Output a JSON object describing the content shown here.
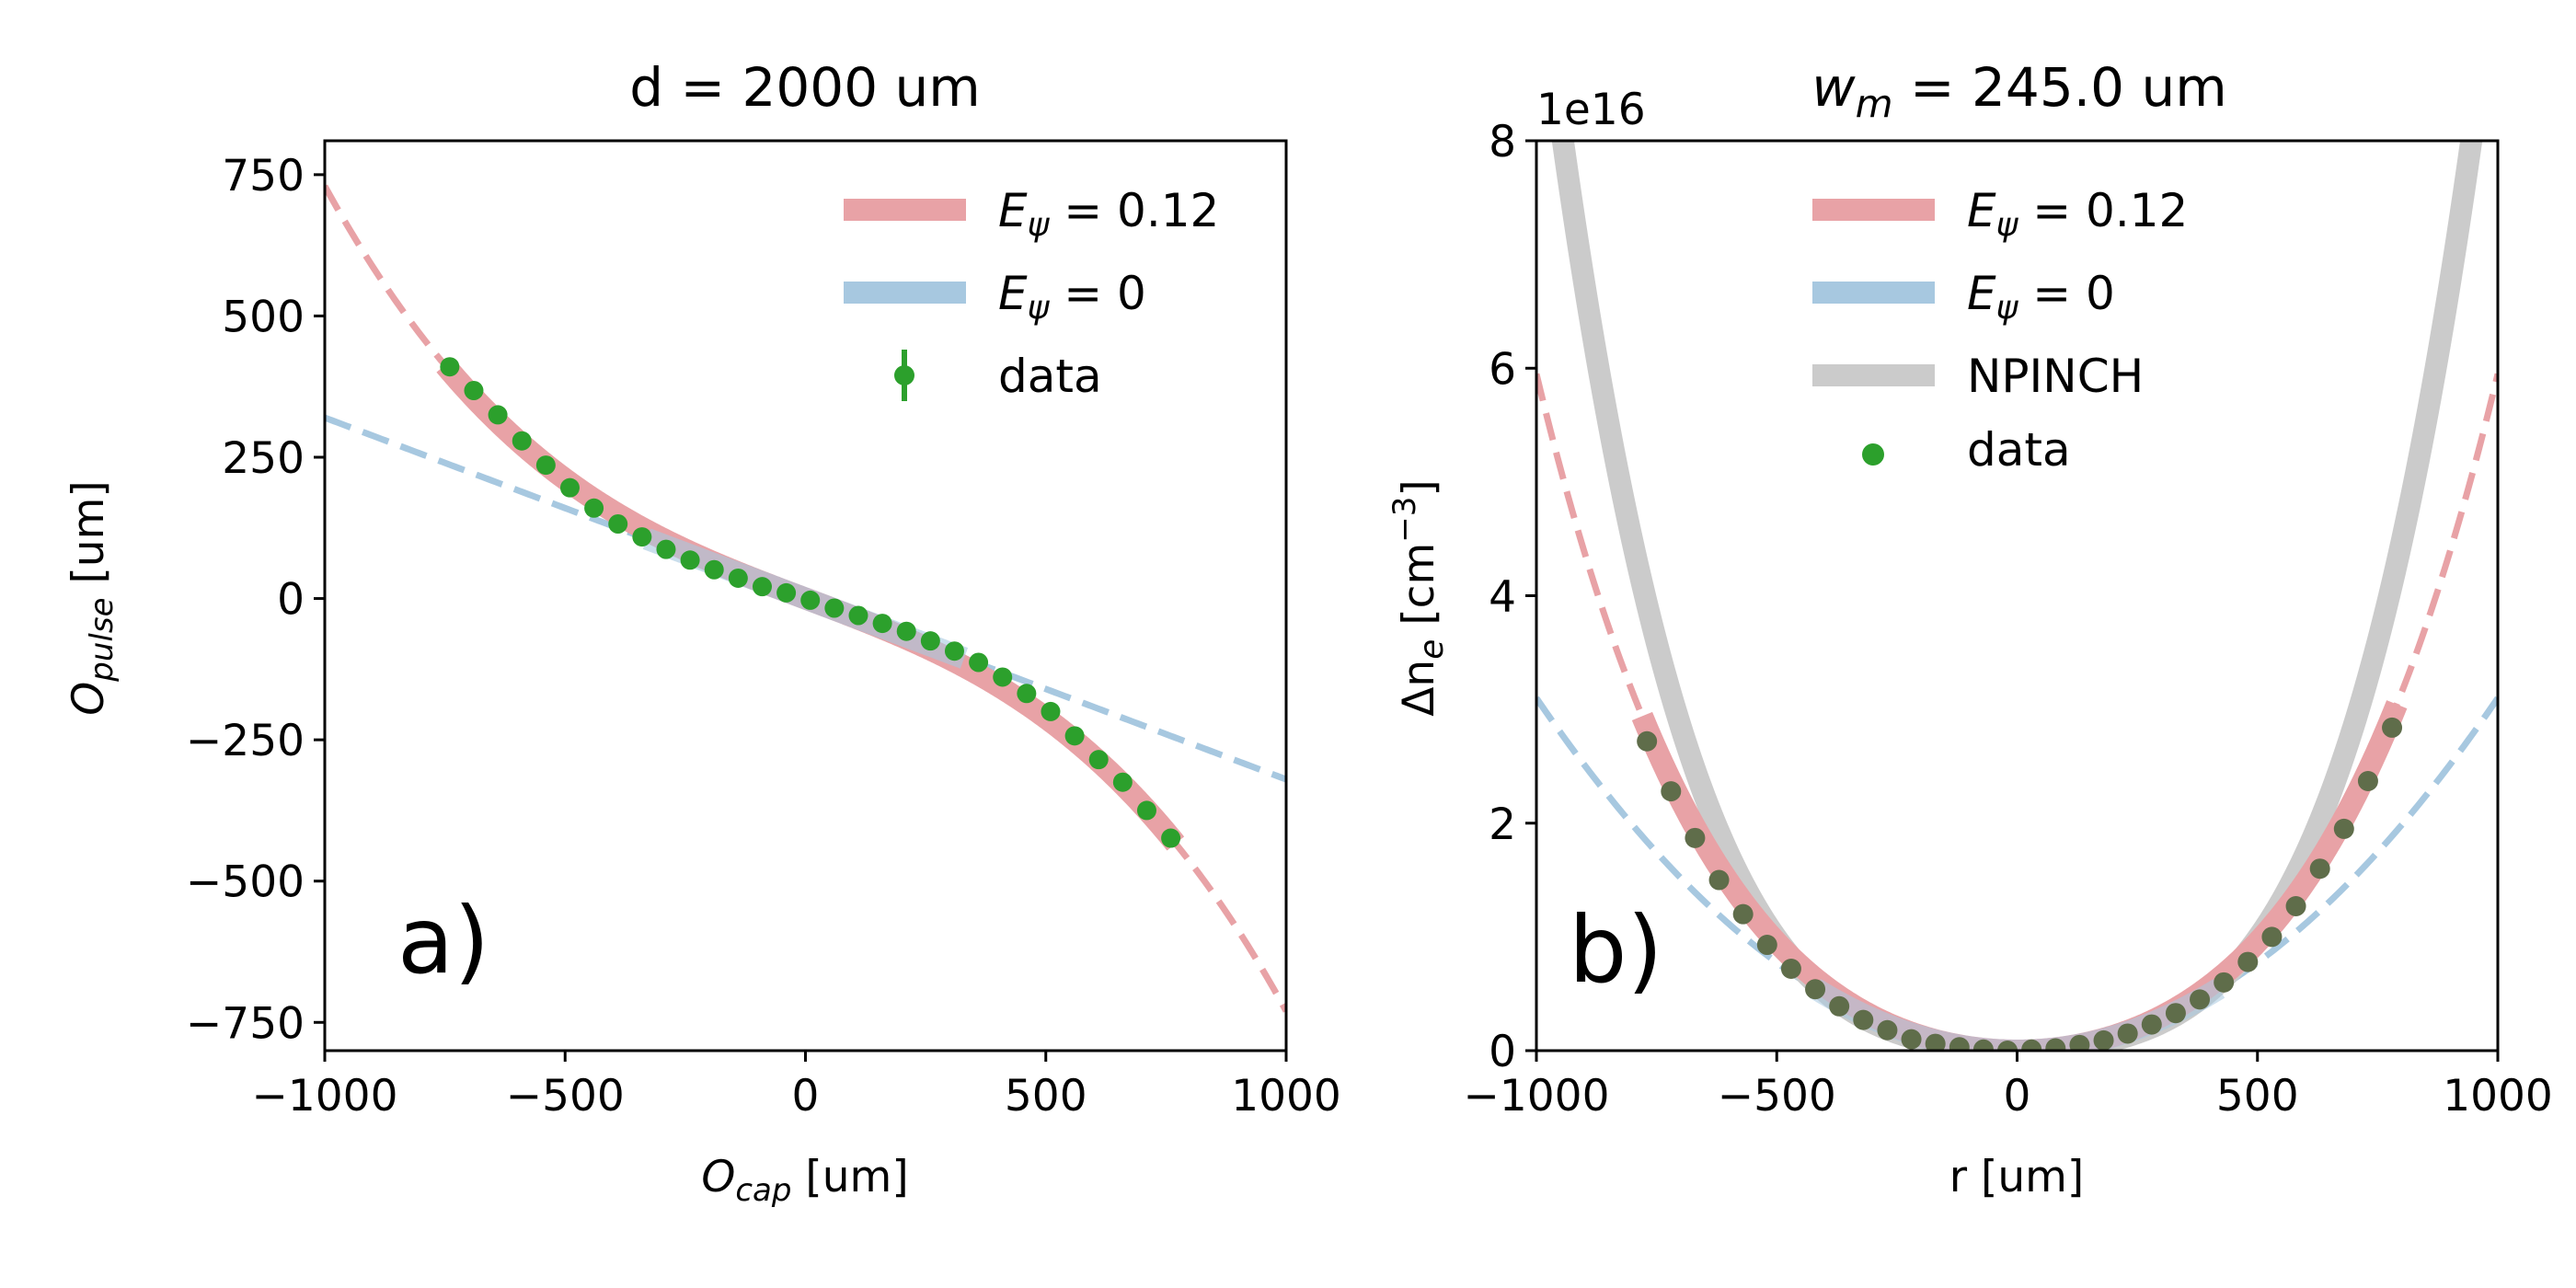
{
  "colors": {
    "red": "#e8a2a6",
    "blue": "#a7c8e0",
    "gray": "#cbcbcb",
    "green": "#2ca02c",
    "data_overlap": "#5f6d4a"
  },
  "chart_data": [
    {
      "type": "line",
      "title": "d = 2000 um",
      "xlabel_main": "O",
      "xlabel_sub": "cap",
      "xlabel_unit": " [um]",
      "ylabel_main": "O",
      "ylabel_sub": "pulse",
      "ylabel_unit": " [um]",
      "xlim": [
        -1000,
        1000
      ],
      "ylim": [
        -800,
        810
      ],
      "xticks": [
        -1000,
        -500,
        0,
        500,
        1000
      ],
      "xtick_labels": [
        "−1000",
        "−500",
        "0",
        "500",
        "1000"
      ],
      "yticks": [
        -750,
        -500,
        -250,
        0,
        250,
        500,
        750
      ],
      "ytick_labels": [
        "−750",
        "−500",
        "−250",
        "0",
        "250",
        "500",
        "750"
      ],
      "panel_label": "a)",
      "model": {
        "linear": -0.32,
        "cubic": -4.1e-07
      },
      "series": [
        {
          "name": "E_ψ = 0.12",
          "legend_sub": "ψ",
          "legend_value": " = 0.12",
          "style": "band+dash",
          "color_key": "red"
        },
        {
          "name": "E_ψ = 0",
          "legend_sub": "ψ",
          "legend_value": " = 0",
          "style": "band+dash",
          "color_key": "blue"
        },
        {
          "name": "data",
          "legend_label": "data",
          "style": "errorbar",
          "color_key": "green",
          "x": [
            -740,
            -690,
            -640,
            -590,
            -540,
            -490,
            -440,
            -390,
            -340,
            -290,
            -240,
            -190,
            -140,
            -90,
            -40,
            10,
            60,
            110,
            160,
            210,
            260,
            310,
            360,
            410,
            460,
            510,
            560,
            610,
            660,
            710,
            760
          ],
          "y": [
            410,
            368,
            325,
            279,
            236,
            196,
            160,
            132,
            109,
            87,
            68,
            51,
            36,
            21,
            10,
            -3,
            -17,
            -30,
            -44,
            -58,
            -75,
            -93,
            -113,
            -139,
            -168,
            -200,
            -243,
            -285,
            -325,
            -375,
            -424
          ]
        }
      ]
    },
    {
      "type": "line",
      "title_main": "w",
      "title_sub": "m",
      "title_rest": " = 245.0 um",
      "xlabel": "r [um]",
      "ylabel_main": "Δn",
      "ylabel_sub": "e",
      "ylabel_unit": " [cm",
      "ylabel_sup": "−3",
      "ylabel_close": "]",
      "offset_text": "1e16",
      "xlim": [
        -1000,
        1000
      ],
      "ylim": [
        0,
        8
      ],
      "xticks": [
        -1000,
        -500,
        0,
        500,
        1000
      ],
      "xtick_labels": [
        "−1000",
        "−500",
        "0",
        "500",
        "1000"
      ],
      "yticks": [
        0,
        2,
        4,
        6,
        8
      ],
      "ytick_labels": [
        "0",
        "2",
        "4",
        "6",
        "8"
      ],
      "panel_label": "b)",
      "model": {
        "quad": 3.1e-06,
        "quart": 2.85e-12,
        "npinch_quad": 2e-06,
        "npinch_quart": 7.8e-12
      },
      "series": [
        {
          "name": "E_ψ = 0.12",
          "legend_sub": "ψ",
          "legend_value": " = 0.12",
          "style": "band+dash",
          "color_key": "red"
        },
        {
          "name": "E_ψ = 0",
          "legend_sub": "ψ",
          "legend_value": " = 0",
          "style": "band+dash",
          "color_key": "blue"
        },
        {
          "name": "NPINCH",
          "legend_label": "NPINCH",
          "style": "band",
          "color_key": "gray"
        },
        {
          "name": "data",
          "legend_label": "data",
          "style": "points",
          "color_key": "data_overlap",
          "x": [
            -770,
            -720,
            -670,
            -620,
            -570,
            -520,
            -470,
            -420,
            -370,
            -320,
            -270,
            -220,
            -170,
            -120,
            -70,
            -20,
            30,
            80,
            130,
            180,
            230,
            280,
            330,
            380,
            430,
            480,
            530,
            580,
            630,
            680,
            730,
            780
          ],
          "y": [
            2.72,
            2.28,
            1.87,
            1.5,
            1.2,
            0.93,
            0.72,
            0.54,
            0.39,
            0.27,
            0.18,
            0.1,
            0.06,
            0.03,
            0.01,
            0.0,
            0.01,
            0.02,
            0.05,
            0.09,
            0.15,
            0.23,
            0.33,
            0.45,
            0.6,
            0.78,
            1.0,
            1.27,
            1.6,
            1.95,
            2.37,
            2.84
          ]
        }
      ]
    }
  ]
}
